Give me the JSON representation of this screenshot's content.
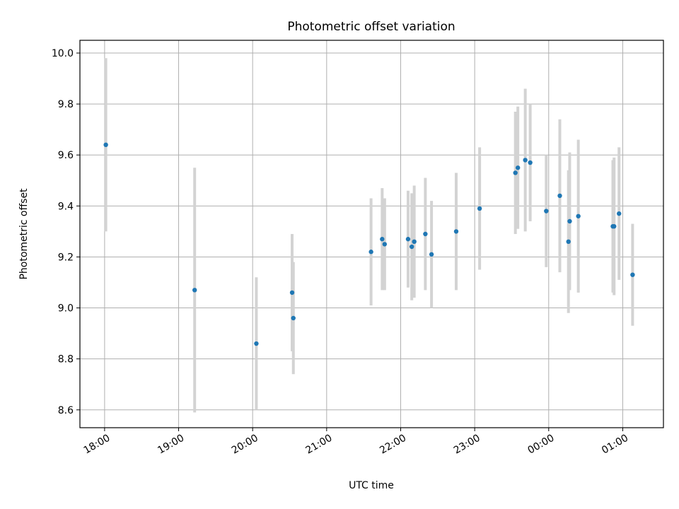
{
  "chart_data": {
    "type": "scatter",
    "title": "Photometric offset variation",
    "xlabel": "UTC time",
    "ylabel": "Photometric offset",
    "x_axis": "time",
    "xlim": [
      "17:40",
      "01:33"
    ],
    "ylim": [
      8.53,
      10.05
    ],
    "x_ticks": [
      "18:00",
      "19:00",
      "20:00",
      "21:00",
      "22:00",
      "23:00",
      "00:00",
      "01:00"
    ],
    "y_ticks": [
      8.6,
      8.8,
      9.0,
      9.2,
      9.4,
      9.6,
      9.8,
      10.0
    ],
    "y_tick_labels": [
      "8.6",
      "8.8",
      "9.0",
      "9.2",
      "9.4",
      "9.6",
      "9.8",
      "10.0"
    ],
    "grid": true,
    "colors": {
      "point": "#1f77b4",
      "errorbar": "#d3d3d3",
      "grid": "#b0b0b0"
    },
    "points": [
      {
        "x": "18:01",
        "y": 9.64,
        "err": 0.34
      },
      {
        "x": "19:13",
        "y": 9.07,
        "err": 0.48
      },
      {
        "x": "20:03",
        "y": 8.86,
        "err": 0.26
      },
      {
        "x": "20:32",
        "y": 9.06,
        "err": 0.23
      },
      {
        "x": "20:33",
        "y": 8.96,
        "err": 0.22
      },
      {
        "x": "21:36",
        "y": 9.22,
        "err": 0.21
      },
      {
        "x": "21:45",
        "y": 9.27,
        "err": 0.2
      },
      {
        "x": "21:47",
        "y": 9.25,
        "err": 0.18
      },
      {
        "x": "22:06",
        "y": 9.27,
        "err": 0.19
      },
      {
        "x": "22:09",
        "y": 9.24,
        "err": 0.21
      },
      {
        "x": "22:11",
        "y": 9.26,
        "err": 0.22
      },
      {
        "x": "22:20",
        "y": 9.29,
        "err": 0.22
      },
      {
        "x": "22:25",
        "y": 9.21,
        "err": 0.21
      },
      {
        "x": "22:45",
        "y": 9.3,
        "err": 0.23
      },
      {
        "x": "23:04",
        "y": 9.39,
        "err": 0.24
      },
      {
        "x": "23:33",
        "y": 9.53,
        "err": 0.24
      },
      {
        "x": "23:35",
        "y": 9.55,
        "err": 0.24
      },
      {
        "x": "23:41",
        "y": 9.58,
        "err": 0.28
      },
      {
        "x": "23:45",
        "y": 9.57,
        "err": 0.23
      },
      {
        "x": "23:58",
        "y": 9.38,
        "err": 0.22
      },
      {
        "x": "00:09",
        "y": 9.44,
        "err": 0.3
      },
      {
        "x": "00:16",
        "y": 9.26,
        "err": 0.28
      },
      {
        "x": "00:17",
        "y": 9.34,
        "err": 0.27
      },
      {
        "x": "00:24",
        "y": 9.36,
        "err": 0.3
      },
      {
        "x": "00:52",
        "y": 9.32,
        "err": 0.26
      },
      {
        "x": "00:53",
        "y": 9.32,
        "err": 0.27
      },
      {
        "x": "00:57",
        "y": 9.37,
        "err": 0.26
      },
      {
        "x": "01:08",
        "y": 9.13,
        "err": 0.2
      }
    ]
  }
}
